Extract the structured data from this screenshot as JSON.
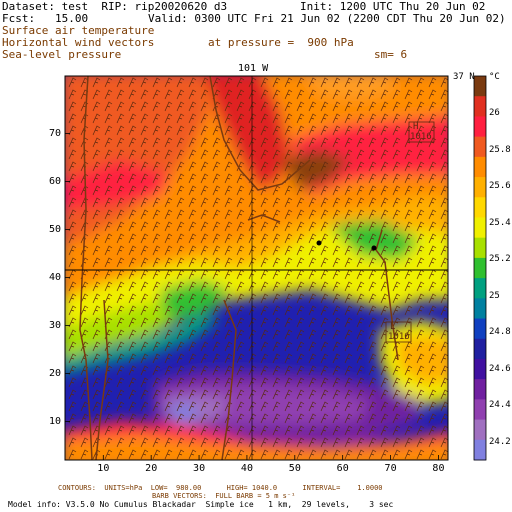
{
  "header": {
    "dataset": "Dataset: test  RIP: rip20020620 d3",
    "init": "Init: 1200 UTC Thu 20 Jun 02",
    "fcst": "Fcst:   15.00",
    "valid": "Valid: 0300 UTC Fri 21 Jun 02 (2200 CDT Thu 20 Jun 02)",
    "field1": "Surface air temperature",
    "field2": "Horizontal wind vectors",
    "field3": "Sea-level pressure",
    "pressure": "at pressure =  900 hPa",
    "sm": "sm= 6"
  },
  "map": {
    "top_label": "101 W",
    "right_label": "37 N",
    "x_ticks": [
      "10",
      "20",
      "30",
      "40",
      "50",
      "60",
      "70",
      "80"
    ],
    "y_ticks": [
      "10",
      "20",
      "30",
      "40",
      "50",
      "60",
      "70"
    ],
    "high_label": "H",
    "high_value": "1016",
    "low_label": "L",
    "low_value": "1016"
  },
  "colorbar": {
    "unit": "°C",
    "labels": [
      "26",
      "25.8",
      "25.6",
      "25.4",
      "25.2",
      "25",
      "24.8",
      "24.6",
      "24.4",
      "24.2"
    ],
    "colors": [
      "#7a3a10",
      "#e03020",
      "#ff2040",
      "#f05a20",
      "#ff8c00",
      "#ffb000",
      "#ffd800",
      "#f0f000",
      "#a8e000",
      "#30c030",
      "#00a080",
      "#0080a0",
      "#1040c0",
      "#2020a0",
      "#4010a0",
      "#7020a0",
      "#9040b0",
      "#a070c0",
      "#8080e0"
    ]
  },
  "footer": {
    "line1": "CONTOURS:  UNITS=hPa  LOW=  980.00      HIGH= 1040.0      INTERVAL=    1.0000",
    "line2": "BARB VECTORS:  FULL BARB = 5 m s⁻¹",
    "line3": "Model info: V3.5.0 No Cumulus Blackadar  Simple ice   1 km,  29 levels,    3 sec"
  }
}
